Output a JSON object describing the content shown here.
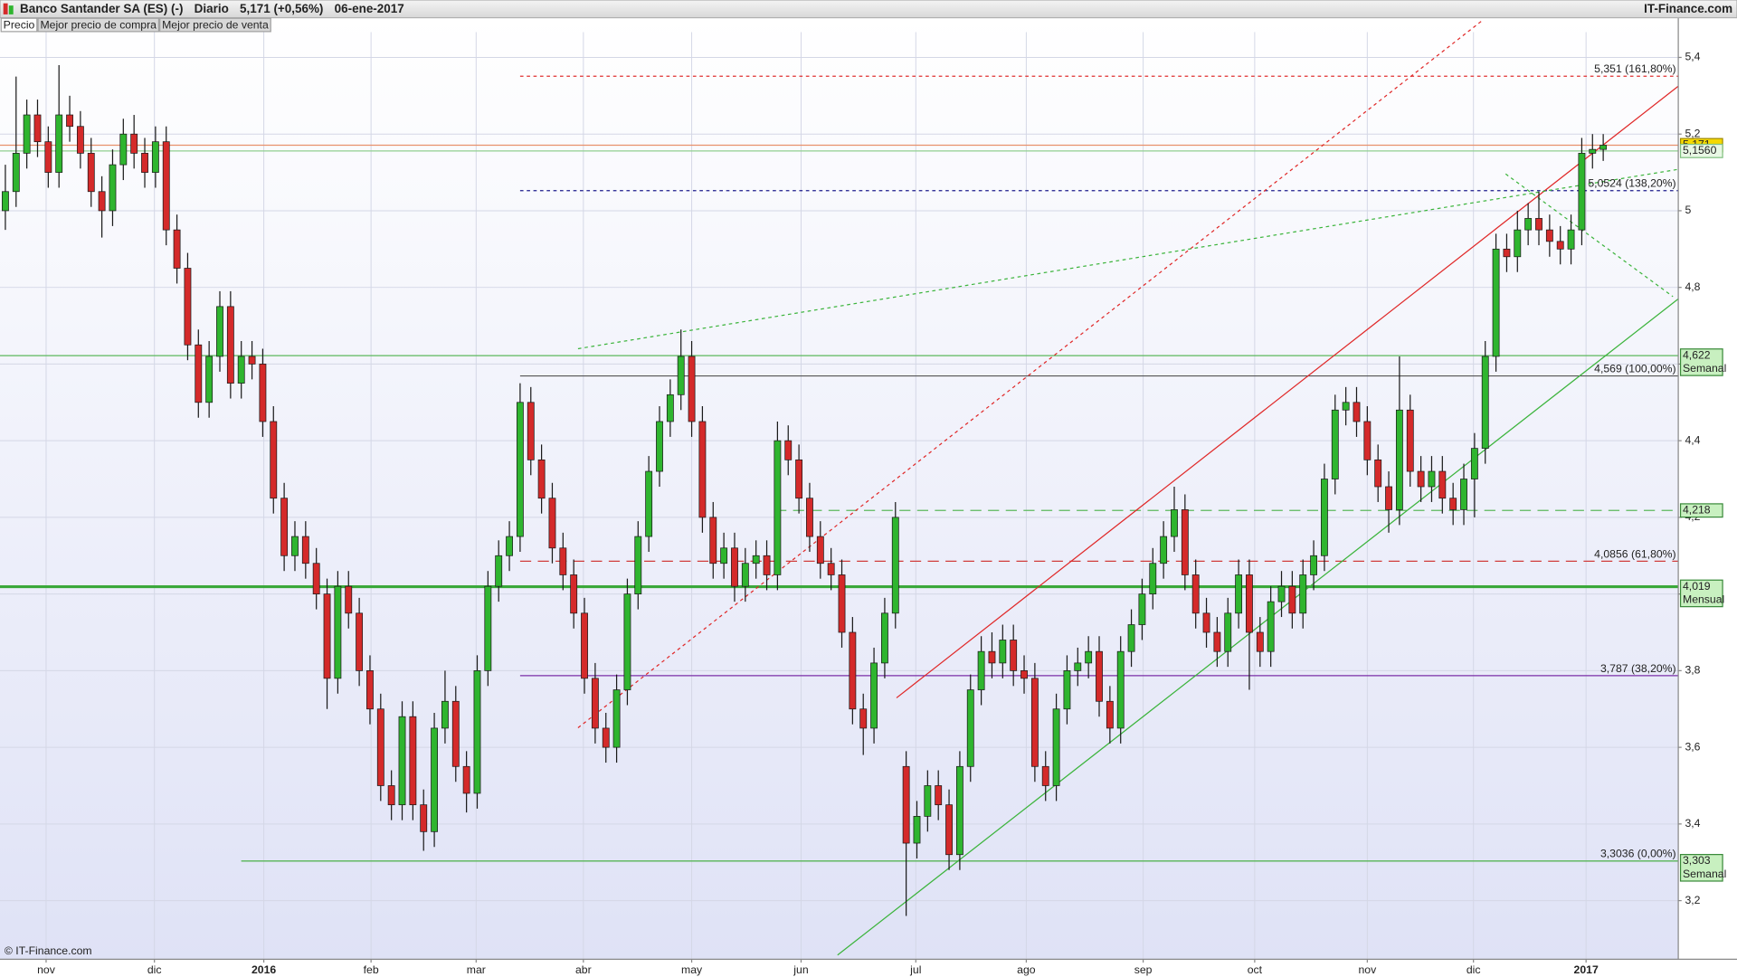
{
  "chart_data": {
    "type": "candlestick",
    "title": "Banco Santander SA (ES) (-)",
    "period": "Diario",
    "last": "5,171 (+0,56%)",
    "date": "06-ene-2017",
    "source": "IT-Finance.com",
    "copyright": "© IT-Finance.com",
    "legend": [
      {
        "name": "Precio",
        "color": "#222222"
      },
      {
        "name": "Mejor precio de compra",
        "color": "#3cb43c"
      },
      {
        "name": "Mejor precio de venta",
        "color": "#e03c3c"
      }
    ],
    "up_color": "#2fb52f",
    "down_color": "#d42a2a",
    "wick_color": "#1a1a1a",
    "grid": true,
    "xlim": [
      -0.5,
      156
    ],
    "ylim": [
      3.047,
      5.466
    ],
    "yticks": [
      {
        "value": 3.2,
        "label": "3,2"
      },
      {
        "value": 3.4,
        "label": "3,4"
      },
      {
        "value": 3.6,
        "label": "3,6"
      },
      {
        "value": 3.8,
        "label": "3,8"
      },
      {
        "value": 4,
        "label": "4"
      },
      {
        "value": 4.2,
        "label": "4,2"
      },
      {
        "value": 4.4,
        "label": "4,4"
      },
      {
        "value": 4.6,
        "label": "4,6"
      },
      {
        "value": 4.8,
        "label": "4,8"
      },
      {
        "value": 5,
        "label": "5"
      },
      {
        "value": 5.2,
        "label": "5,2"
      },
      {
        "value": 5.4,
        "label": "5,4"
      }
    ],
    "xticks": [
      {
        "value": 3.8,
        "label": "nov"
      },
      {
        "value": 13.9,
        "label": "dic"
      },
      {
        "value": 24.1,
        "label": "2016"
      },
      {
        "value": 34.1,
        "label": "feb"
      },
      {
        "value": 43.9,
        "label": "mar"
      },
      {
        "value": 53.9,
        "label": "abr"
      },
      {
        "value": 64,
        "label": "may"
      },
      {
        "value": 74.2,
        "label": "jun"
      },
      {
        "value": 84.9,
        "label": "jul"
      },
      {
        "value": 95.2,
        "label": "ago"
      },
      {
        "value": 106.1,
        "label": "sep"
      },
      {
        "value": 116.5,
        "label": "oct"
      },
      {
        "value": 127,
        "label": "nov"
      },
      {
        "value": 136.9,
        "label": "dic"
      },
      {
        "value": 147.4,
        "label": "2017"
      }
    ],
    "ohlc": [
      [
        5.0,
        5.12,
        4.95,
        5.05
      ],
      [
        5.05,
        5.35,
        5.01,
        5.15
      ],
      [
        5.15,
        5.29,
        5.11,
        5.25
      ],
      [
        5.25,
        5.29,
        5.14,
        5.18
      ],
      [
        5.18,
        5.22,
        5.06,
        5.1
      ],
      [
        5.1,
        5.38,
        5.06,
        5.25
      ],
      [
        5.25,
        5.3,
        5.18,
        5.22
      ],
      [
        5.22,
        5.26,
        5.11,
        5.15
      ],
      [
        5.15,
        5.19,
        5.01,
        5.05
      ],
      [
        5.05,
        5.09,
        4.93,
        5.0
      ],
      [
        5.0,
        5.16,
        4.96,
        5.12
      ],
      [
        5.12,
        5.24,
        5.08,
        5.2
      ],
      [
        5.2,
        5.25,
        5.11,
        5.15
      ],
      [
        5.15,
        5.19,
        5.06,
        5.1
      ],
      [
        5.1,
        5.22,
        5.06,
        5.18
      ],
      [
        5.18,
        5.22,
        4.91,
        4.95
      ],
      [
        4.95,
        4.99,
        4.81,
        4.85
      ],
      [
        4.85,
        4.89,
        4.61,
        4.65
      ],
      [
        4.65,
        4.69,
        4.46,
        4.5
      ],
      [
        4.5,
        4.66,
        4.46,
        4.62
      ],
      [
        4.62,
        4.79,
        4.58,
        4.75
      ],
      [
        4.75,
        4.79,
        4.51,
        4.55
      ],
      [
        4.55,
        4.66,
        4.51,
        4.62
      ],
      [
        4.62,
        4.66,
        4.56,
        4.6
      ],
      [
        4.6,
        4.64,
        4.41,
        4.45
      ],
      [
        4.45,
        4.49,
        4.21,
        4.25
      ],
      [
        4.25,
        4.29,
        4.06,
        4.1
      ],
      [
        4.1,
        4.19,
        4.06,
        4.15
      ],
      [
        4.15,
        4.19,
        4.04,
        4.08
      ],
      [
        4.08,
        4.12,
        3.96,
        4.0
      ],
      [
        4.0,
        4.04,
        3.7,
        3.78
      ],
      [
        3.78,
        4.06,
        3.74,
        4.02
      ],
      [
        4.02,
        4.06,
        3.91,
        3.95
      ],
      [
        3.95,
        3.99,
        3.76,
        3.8
      ],
      [
        3.8,
        3.84,
        3.66,
        3.7
      ],
      [
        3.7,
        3.74,
        3.46,
        3.5
      ],
      [
        3.5,
        3.54,
        3.41,
        3.45
      ],
      [
        3.45,
        3.72,
        3.41,
        3.68
      ],
      [
        3.68,
        3.72,
        3.41,
        3.45
      ],
      [
        3.45,
        3.49,
        3.33,
        3.38
      ],
      [
        3.38,
        3.69,
        3.34,
        3.65
      ],
      [
        3.65,
        3.8,
        3.61,
        3.72
      ],
      [
        3.72,
        3.76,
        3.51,
        3.55
      ],
      [
        3.55,
        3.59,
        3.43,
        3.48
      ],
      [
        3.48,
        3.84,
        3.44,
        3.8
      ],
      [
        3.8,
        4.06,
        3.76,
        4.02
      ],
      [
        4.02,
        4.14,
        3.98,
        4.1
      ],
      [
        4.1,
        4.19,
        4.06,
        4.15
      ],
      [
        4.15,
        4.55,
        4.11,
        4.5
      ],
      [
        4.5,
        4.54,
        4.31,
        4.35
      ],
      [
        4.35,
        4.39,
        4.21,
        4.25
      ],
      [
        4.25,
        4.29,
        4.08,
        4.12
      ],
      [
        4.12,
        4.16,
        4.01,
        4.05
      ],
      [
        4.05,
        4.09,
        3.91,
        3.95
      ],
      [
        3.95,
        3.99,
        3.74,
        3.78
      ],
      [
        3.78,
        3.82,
        3.61,
        3.65
      ],
      [
        3.65,
        3.69,
        3.56,
        3.6
      ],
      [
        3.6,
        3.79,
        3.56,
        3.75
      ],
      [
        3.75,
        4.04,
        3.71,
        4.0
      ],
      [
        4.0,
        4.19,
        3.96,
        4.15
      ],
      [
        4.15,
        4.36,
        4.11,
        4.32
      ],
      [
        4.32,
        4.49,
        4.28,
        4.45
      ],
      [
        4.45,
        4.56,
        4.41,
        4.52
      ],
      [
        4.52,
        4.69,
        4.48,
        4.62
      ],
      [
        4.62,
        4.66,
        4.41,
        4.45
      ],
      [
        4.45,
        4.49,
        4.16,
        4.2
      ],
      [
        4.2,
        4.24,
        4.04,
        4.08
      ],
      [
        4.08,
        4.16,
        4.04,
        4.12
      ],
      [
        4.12,
        4.16,
        3.98,
        4.02
      ],
      [
        4.02,
        4.12,
        3.98,
        4.08
      ],
      [
        4.08,
        4.14,
        4.04,
        4.1
      ],
      [
        4.1,
        4.14,
        4.01,
        4.05
      ],
      [
        4.05,
        4.45,
        4.01,
        4.4
      ],
      [
        4.4,
        4.44,
        4.31,
        4.35
      ],
      [
        4.35,
        4.39,
        4.21,
        4.25
      ],
      [
        4.25,
        4.29,
        4.11,
        4.15
      ],
      [
        4.15,
        4.19,
        4.04,
        4.08
      ],
      [
        4.08,
        4.12,
        4.01,
        4.05
      ],
      [
        4.05,
        4.09,
        3.86,
        3.9
      ],
      [
        3.9,
        3.94,
        3.66,
        3.7
      ],
      [
        3.7,
        3.74,
        3.58,
        3.65
      ],
      [
        3.65,
        3.86,
        3.61,
        3.82
      ],
      [
        3.82,
        3.99,
        3.78,
        3.95
      ],
      [
        3.95,
        4.24,
        3.91,
        4.2
      ],
      [
        3.55,
        3.59,
        3.16,
        3.35
      ],
      [
        3.35,
        3.46,
        3.31,
        3.42
      ],
      [
        3.42,
        3.54,
        3.38,
        3.5
      ],
      [
        3.5,
        3.54,
        3.41,
        3.45
      ],
      [
        3.45,
        3.49,
        3.28,
        3.32
      ],
      [
        3.32,
        3.59,
        3.28,
        3.55
      ],
      [
        3.55,
        3.79,
        3.51,
        3.75
      ],
      [
        3.75,
        3.89,
        3.71,
        3.85
      ],
      [
        3.85,
        3.9,
        3.78,
        3.82
      ],
      [
        3.82,
        3.92,
        3.78,
        3.88
      ],
      [
        3.88,
        3.92,
        3.76,
        3.8
      ],
      [
        3.8,
        3.84,
        3.74,
        3.78
      ],
      [
        3.78,
        3.82,
        3.51,
        3.55
      ],
      [
        3.55,
        3.59,
        3.46,
        3.5
      ],
      [
        3.5,
        3.74,
        3.46,
        3.7
      ],
      [
        3.7,
        3.84,
        3.66,
        3.8
      ],
      [
        3.8,
        3.86,
        3.76,
        3.82
      ],
      [
        3.82,
        3.89,
        3.78,
        3.85
      ],
      [
        3.85,
        3.89,
        3.68,
        3.72
      ],
      [
        3.72,
        3.76,
        3.61,
        3.65
      ],
      [
        3.65,
        3.89,
        3.61,
        3.85
      ],
      [
        3.85,
        3.96,
        3.81,
        3.92
      ],
      [
        3.92,
        4.04,
        3.88,
        4.0
      ],
      [
        4.0,
        4.12,
        3.96,
        4.08
      ],
      [
        4.08,
        4.19,
        4.04,
        4.15
      ],
      [
        4.15,
        4.28,
        4.11,
        4.22
      ],
      [
        4.22,
        4.26,
        4.01,
        4.05
      ],
      [
        4.05,
        4.09,
        3.91,
        3.95
      ],
      [
        3.95,
        3.99,
        3.86,
        3.9
      ],
      [
        3.9,
        3.94,
        3.81,
        3.85
      ],
      [
        3.85,
        3.99,
        3.81,
        3.95
      ],
      [
        3.95,
        4.09,
        3.91,
        4.05
      ],
      [
        4.05,
        4.09,
        3.75,
        3.9
      ],
      [
        3.9,
        3.94,
        3.81,
        3.85
      ],
      [
        3.85,
        4.02,
        3.81,
        3.98
      ],
      [
        3.98,
        4.06,
        3.94,
        4.02
      ],
      [
        4.02,
        4.06,
        3.91,
        3.95
      ],
      [
        3.95,
        4.09,
        3.91,
        4.05
      ],
      [
        4.05,
        4.14,
        4.01,
        4.1
      ],
      [
        4.1,
        4.34,
        4.06,
        4.3
      ],
      [
        4.3,
        4.52,
        4.26,
        4.48
      ],
      [
        4.48,
        4.54,
        4.44,
        4.5
      ],
      [
        4.5,
        4.54,
        4.41,
        4.45
      ],
      [
        4.45,
        4.49,
        4.31,
        4.35
      ],
      [
        4.35,
        4.39,
        4.24,
        4.28
      ],
      [
        4.28,
        4.32,
        4.16,
        4.22
      ],
      [
        4.22,
        4.62,
        4.18,
        4.48
      ],
      [
        4.48,
        4.52,
        4.28,
        4.32
      ],
      [
        4.32,
        4.36,
        4.24,
        4.28
      ],
      [
        4.28,
        4.36,
        4.24,
        4.32
      ],
      [
        4.32,
        4.36,
        4.21,
        4.25
      ],
      [
        4.25,
        4.29,
        4.18,
        4.22
      ],
      [
        4.22,
        4.34,
        4.18,
        4.3
      ],
      [
        4.3,
        4.42,
        4.2,
        4.38
      ],
      [
        4.38,
        4.66,
        4.34,
        4.62
      ],
      [
        4.62,
        4.94,
        4.58,
        4.9
      ],
      [
        4.9,
        4.94,
        4.84,
        4.88
      ],
      [
        4.88,
        5.0,
        4.84,
        4.95
      ],
      [
        4.95,
        5.02,
        4.91,
        4.98
      ],
      [
        4.98,
        5.05,
        4.91,
        4.95
      ],
      [
        4.95,
        4.99,
        4.88,
        4.92
      ],
      [
        4.92,
        4.96,
        4.86,
        4.9
      ],
      [
        4.9,
        4.99,
        4.86,
        4.95
      ],
      [
        4.95,
        5.19,
        4.91,
        5.15
      ],
      [
        5.15,
        5.2,
        5.11,
        5.16
      ],
      [
        5.16,
        5.2,
        5.13,
        5.171
      ]
    ],
    "fib": [
      {
        "value": 5.351,
        "label": "5,351 (161,80%)",
        "color": "#e03030",
        "dash": "3,3",
        "from": 48
      },
      {
        "value": 5.0524,
        "label": "5,0524 (138,20%)",
        "color": "#1c1c8c",
        "dash": "3,3",
        "from": 48
      },
      {
        "value": 4.569,
        "label": "4,569 (100,00%)",
        "color": "#555555",
        "dash": "",
        "from": 48
      },
      {
        "value": 4.0856,
        "label": "4,0856 (61,80%)",
        "color": "#d03c3c",
        "dash": "10,6",
        "from": 48
      },
      {
        "value": 3.787,
        "label": "3,787 (38,20%)",
        "color": "#7a2ea8",
        "dash": "",
        "from": 48
      },
      {
        "value": 3.3036,
        "label": "3,3036 (0,00%)",
        "color": "#4fb04f",
        "dash": "",
        "from": 22
      }
    ],
    "levels": [
      {
        "value": 5.171,
        "label": "5,171",
        "line": "#e8906c",
        "box": "#f5d800",
        "border": "#a08a00",
        "width": 1
      },
      {
        "value": 5.156,
        "label": "5,1560",
        "line": "#90d090",
        "box": "#e8f8e4",
        "border": "#80c080",
        "width": 1
      },
      {
        "value": 4.622,
        "label": "4,622",
        "note": "Semanal",
        "line": "#5cb85c",
        "box": "#c8f0c0",
        "border": "#3a8a3a",
        "width": 1
      },
      {
        "value": 4.218,
        "label": "4,218",
        "line": "#5cb85c",
        "box": "#c8f0c0",
        "border": "#3a8a3a",
        "width": 1,
        "dash": "10,6",
        "from": 71.8
      },
      {
        "value": 4.019,
        "label": "4,019",
        "note": "Mensual",
        "line": "#3aa83a",
        "box": "#c8f0c0",
        "border": "#3a8a3a",
        "width": 2.5
      },
      {
        "value": 3.303,
        "label": "3,303",
        "note": "Semanal",
        "line": "#5cb85c",
        "box": "#c8f0c0",
        "border": "#3a8a3a",
        "width": 1,
        "from": 22
      }
    ],
    "lines": [
      {
        "x1": 83.1,
        "y1": 3.729,
        "x2": 156,
        "y2": 5.325,
        "color": "#e02828",
        "dash": ""
      },
      {
        "x1": 53.4,
        "y1": 3.651,
        "x2": 137.8,
        "y2": 5.498,
        "color": "#e02828",
        "dash": "3,3"
      },
      {
        "x1": 77.6,
        "y1": 3.058,
        "x2": 156,
        "y2": 4.77,
        "color": "#3cb43c",
        "dash": ""
      },
      {
        "x1": 53.4,
        "y1": 4.64,
        "x2": 156,
        "y2": 5.108,
        "color": "#3cb43c",
        "dash": "3,3"
      },
      {
        "x1": 139.9,
        "y1": 5.096,
        "x2": 155.5,
        "y2": 4.776,
        "color": "#3cb43c",
        "dash": "3,3"
      }
    ]
  }
}
